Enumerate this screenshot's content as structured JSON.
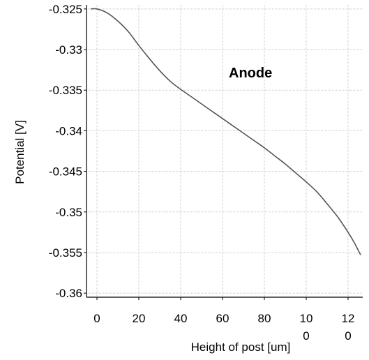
{
  "chart_data": {
    "type": "line",
    "title": "",
    "xlabel": "Height of post [um]",
    "ylabel": "Potential [V]",
    "annotation": "Anode",
    "xlim": [
      -5,
      127
    ],
    "ylim": [
      -0.3605,
      -0.3245
    ],
    "grid": true,
    "x_ticks": [
      {
        "value": 0,
        "lines": [
          "0"
        ]
      },
      {
        "value": 20,
        "lines": [
          "20"
        ]
      },
      {
        "value": 40,
        "lines": [
          "40"
        ]
      },
      {
        "value": 60,
        "lines": [
          "60"
        ]
      },
      {
        "value": 80,
        "lines": [
          "80"
        ]
      },
      {
        "value": 100,
        "lines": [
          "10",
          "0"
        ]
      },
      {
        "value": 120,
        "lines": [
          "12",
          "0"
        ]
      }
    ],
    "y_ticks": [
      {
        "value": -0.325,
        "label": "-0.325"
      },
      {
        "value": -0.33,
        "label": "-0.33"
      },
      {
        "value": -0.335,
        "label": "-0.335"
      },
      {
        "value": -0.34,
        "label": "-0.34"
      },
      {
        "value": -0.345,
        "label": "-0.345"
      },
      {
        "value": -0.35,
        "label": "-0.35"
      },
      {
        "value": -0.355,
        "label": "-0.355"
      },
      {
        "value": -0.36,
        "label": "-0.36"
      }
    ],
    "series": [
      {
        "color": "#555555",
        "x": [
          -3,
          0,
          5,
          10,
          15,
          20,
          25,
          30,
          35,
          40,
          45,
          50,
          55,
          60,
          65,
          70,
          75,
          80,
          85,
          90,
          95,
          100,
          105,
          110,
          115,
          120,
          123,
          126
        ],
        "y": [
          -0.325,
          -0.325,
          -0.3255,
          -0.3265,
          -0.3278,
          -0.3295,
          -0.3311,
          -0.3326,
          -0.3339,
          -0.3349,
          -0.3358,
          -0.3367,
          -0.3376,
          -0.3385,
          -0.3394,
          -0.3403,
          -0.3412,
          -0.3421,
          -0.3431,
          -0.3441,
          -0.3452,
          -0.3463,
          -0.3475,
          -0.349,
          -0.3506,
          -0.3525,
          -0.3538,
          -0.3553
        ]
      }
    ]
  }
}
